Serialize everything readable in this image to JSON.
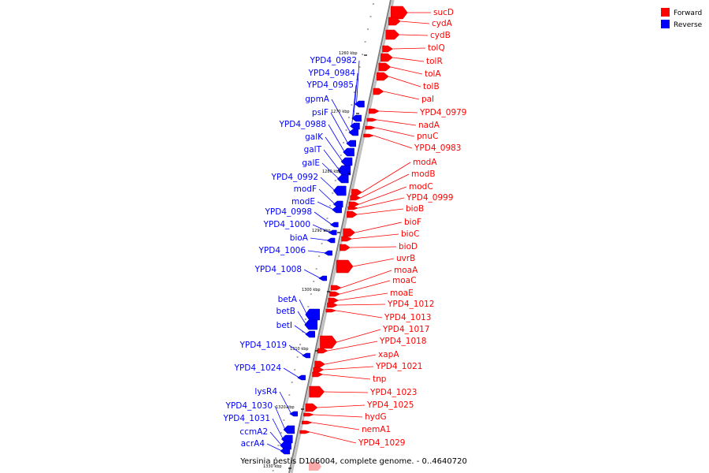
{
  "legend": [
    {
      "label": "Forward",
      "color": "#ff0000"
    },
    {
      "label": "Reverse",
      "color": "#0000ff"
    }
  ],
  "caption": "Yersinia pestis D106004, complete genome. - 0..4640720",
  "colors": {
    "forward": "#ff0000",
    "reverse": "#0000ff",
    "axis": "#808080"
  },
  "kbp_marks": [
    "1260 kbp",
    "1270 kbp",
    "1280 kbp",
    "1290 kbp",
    "1300 kbp",
    "1310 kbp",
    "1320 kbp",
    "1330 kbp"
  ],
  "forward_genes": [
    "sucD",
    "cydA",
    "cydB",
    "tolQ",
    "tolR",
    "tolA",
    "tolB",
    "pal",
    "YPD4_0979",
    "nadA",
    "pnuC",
    "YPD4_0983",
    "modA",
    "modB",
    "modC",
    "YPD4_0999",
    "bioB",
    "bioF",
    "bioC",
    "bioD",
    "uvrB",
    "moaA",
    "moaC",
    "moaE",
    "YPD4_1012",
    "YPD4_1013",
    "YPD4_1017",
    "YPD4_1018",
    "xapA",
    "YPD4_1021",
    "tnp",
    "YPD4_1023",
    "YPD4_1025",
    "hydG",
    "nemA1",
    "YPD4_1029"
  ],
  "reverse_genes": [
    "YPD4_0982",
    "YPD4_0984",
    "YPD4_0985",
    "gpmA",
    "psiF",
    "YPD4_0988",
    "galK",
    "galT",
    "galE",
    "YPD4_0992",
    "modF",
    "modE",
    "YPD4_0998",
    "YPD4_1000",
    "bioA",
    "YPD4_1006",
    "YPD4_1008",
    "betA",
    "betB",
    "betI",
    "YPD4_1019",
    "YPD4_1024",
    "lysR4",
    "YPD4_1030",
    "YPD4_1031",
    "ccmA2",
    "acrA4"
  ]
}
